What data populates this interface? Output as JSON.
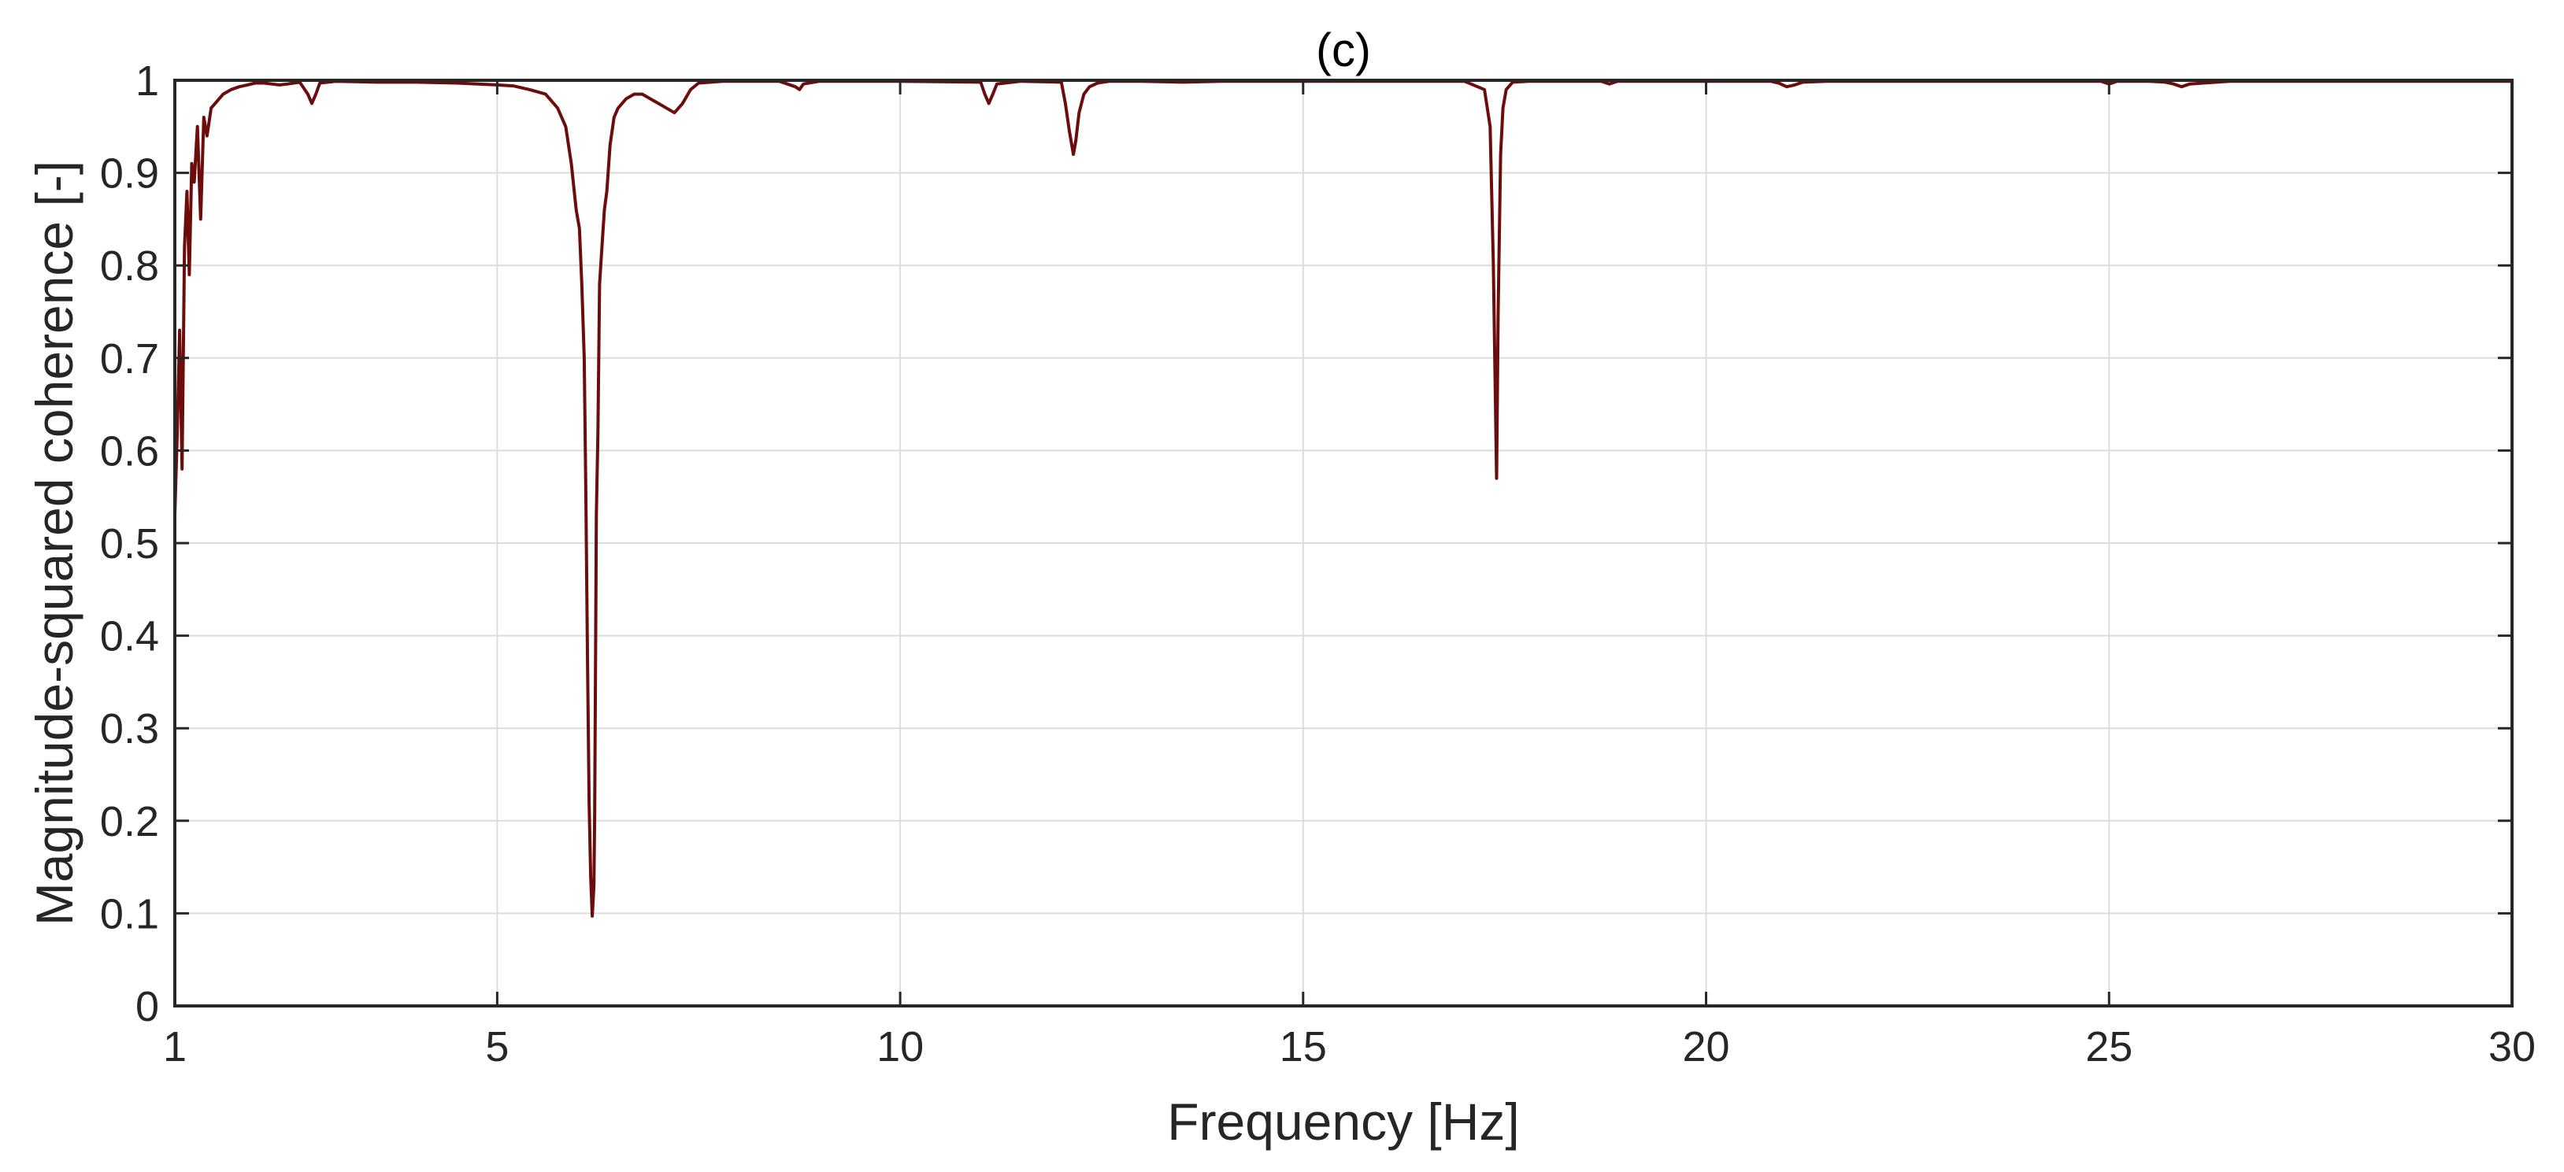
{
  "chart_data": {
    "type": "line",
    "title": "(c)",
    "xlabel": "Frequency [Hz]",
    "ylabel": "Magnitude-squared coherence [-]",
    "xlim": [
      1,
      30
    ],
    "ylim": [
      0,
      1
    ],
    "grid": true,
    "legend": "none",
    "colors": {
      "line": "#6b0d0d",
      "grid": "#dcdcdc",
      "axis": "#262626"
    },
    "x_ticks": [
      1,
      5,
      10,
      15,
      20,
      25,
      30
    ],
    "x_tick_labels": [
      "1",
      "5",
      "10",
      "15",
      "20",
      "25",
      "30"
    ],
    "y_ticks": [
      0,
      0.1,
      0.2,
      0.3,
      0.4,
      0.5,
      0.6,
      0.7,
      0.8,
      0.9,
      1
    ],
    "y_tick_labels": [
      "0",
      "0.1",
      "0.2",
      "0.3",
      "0.4",
      "0.5",
      "0.6",
      "0.7",
      "0.8",
      "0.9",
      "1"
    ],
    "series": [
      {
        "x": [
          1.0,
          1.03,
          1.06,
          1.09,
          1.12,
          1.15,
          1.18,
          1.21,
          1.24,
          1.28,
          1.32,
          1.36,
          1.4,
          1.45,
          1.5,
          1.6,
          1.7,
          1.8,
          1.9,
          2.0,
          2.1,
          2.2,
          2.3,
          2.4,
          2.55,
          2.65,
          2.7,
          2.75,
          2.8,
          3.0,
          3.5,
          4.0,
          4.5,
          5.0,
          5.2,
          5.4,
          5.6,
          5.75,
          5.85,
          5.92,
          5.98,
          6.02,
          6.05,
          6.08,
          6.1,
          6.12,
          6.14,
          6.16,
          6.18,
          6.2,
          6.21,
          6.22,
          6.23,
          6.25,
          6.27,
          6.3,
          6.33,
          6.36,
          6.4,
          6.45,
          6.5,
          6.55,
          6.6,
          6.7,
          6.8,
          6.9,
          7.0,
          7.1,
          7.2,
          7.3,
          7.4,
          7.5,
          7.8,
          8.5,
          8.7,
          8.75,
          8.8,
          9.0,
          10.0,
          11.0,
          11.05,
          11.1,
          11.15,
          11.2,
          11.5,
          12.0,
          12.05,
          12.1,
          12.15,
          12.18,
          12.22,
          12.28,
          12.35,
          12.45,
          12.6,
          13.0,
          13.5,
          14.0,
          15.0,
          16.0,
          17.0,
          17.25,
          17.32,
          17.36,
          17.4,
          17.42,
          17.45,
          17.48,
          17.52,
          17.6,
          17.8,
          18.0,
          18.7,
          18.8,
          18.9,
          19.5,
          20.0,
          20.8,
          20.9,
          21.0,
          21.1,
          21.2,
          21.5,
          22.0,
          23.0,
          24.0,
          24.9,
          25.0,
          25.1,
          25.5,
          25.7,
          25.8,
          25.9,
          26.0,
          26.5,
          27.0,
          28.0,
          29.0,
          30.0
        ],
        "y": [
          0.53,
          0.62,
          0.73,
          0.58,
          0.82,
          0.88,
          0.79,
          0.91,
          0.89,
          0.95,
          0.85,
          0.96,
          0.94,
          0.97,
          0.975,
          0.985,
          0.99,
          0.993,
          0.995,
          0.997,
          0.997,
          0.996,
          0.995,
          0.996,
          0.998,
          0.985,
          0.975,
          0.985,
          0.997,
          0.999,
          0.998,
          0.998,
          0.997,
          0.995,
          0.994,
          0.99,
          0.985,
          0.97,
          0.95,
          0.91,
          0.86,
          0.84,
          0.78,
          0.7,
          0.55,
          0.38,
          0.22,
          0.14,
          0.097,
          0.13,
          0.21,
          0.36,
          0.53,
          0.62,
          0.78,
          0.82,
          0.86,
          0.88,
          0.93,
          0.96,
          0.97,
          0.975,
          0.98,
          0.985,
          0.985,
          0.98,
          0.975,
          0.97,
          0.965,
          0.975,
          0.99,
          0.997,
          0.999,
          0.999,
          0.993,
          0.99,
          0.996,
          0.999,
          0.999,
          0.998,
          0.985,
          0.975,
          0.985,
          0.996,
          0.999,
          0.998,
          0.975,
          0.945,
          0.92,
          0.935,
          0.965,
          0.985,
          0.993,
          0.997,
          0.999,
          0.999,
          0.998,
          0.999,
          0.999,
          0.999,
          0.999,
          0.99,
          0.95,
          0.8,
          0.57,
          0.75,
          0.92,
          0.97,
          0.99,
          0.998,
          0.999,
          0.999,
          0.999,
          0.996,
          0.999,
          0.999,
          0.999,
          0.999,
          0.997,
          0.993,
          0.995,
          0.998,
          0.999,
          0.999,
          0.999,
          0.999,
          0.999,
          0.996,
          0.999,
          0.999,
          0.998,
          0.996,
          0.993,
          0.996,
          0.999,
          0.999,
          0.999,
          0.999,
          0.999
        ]
      }
    ]
  }
}
